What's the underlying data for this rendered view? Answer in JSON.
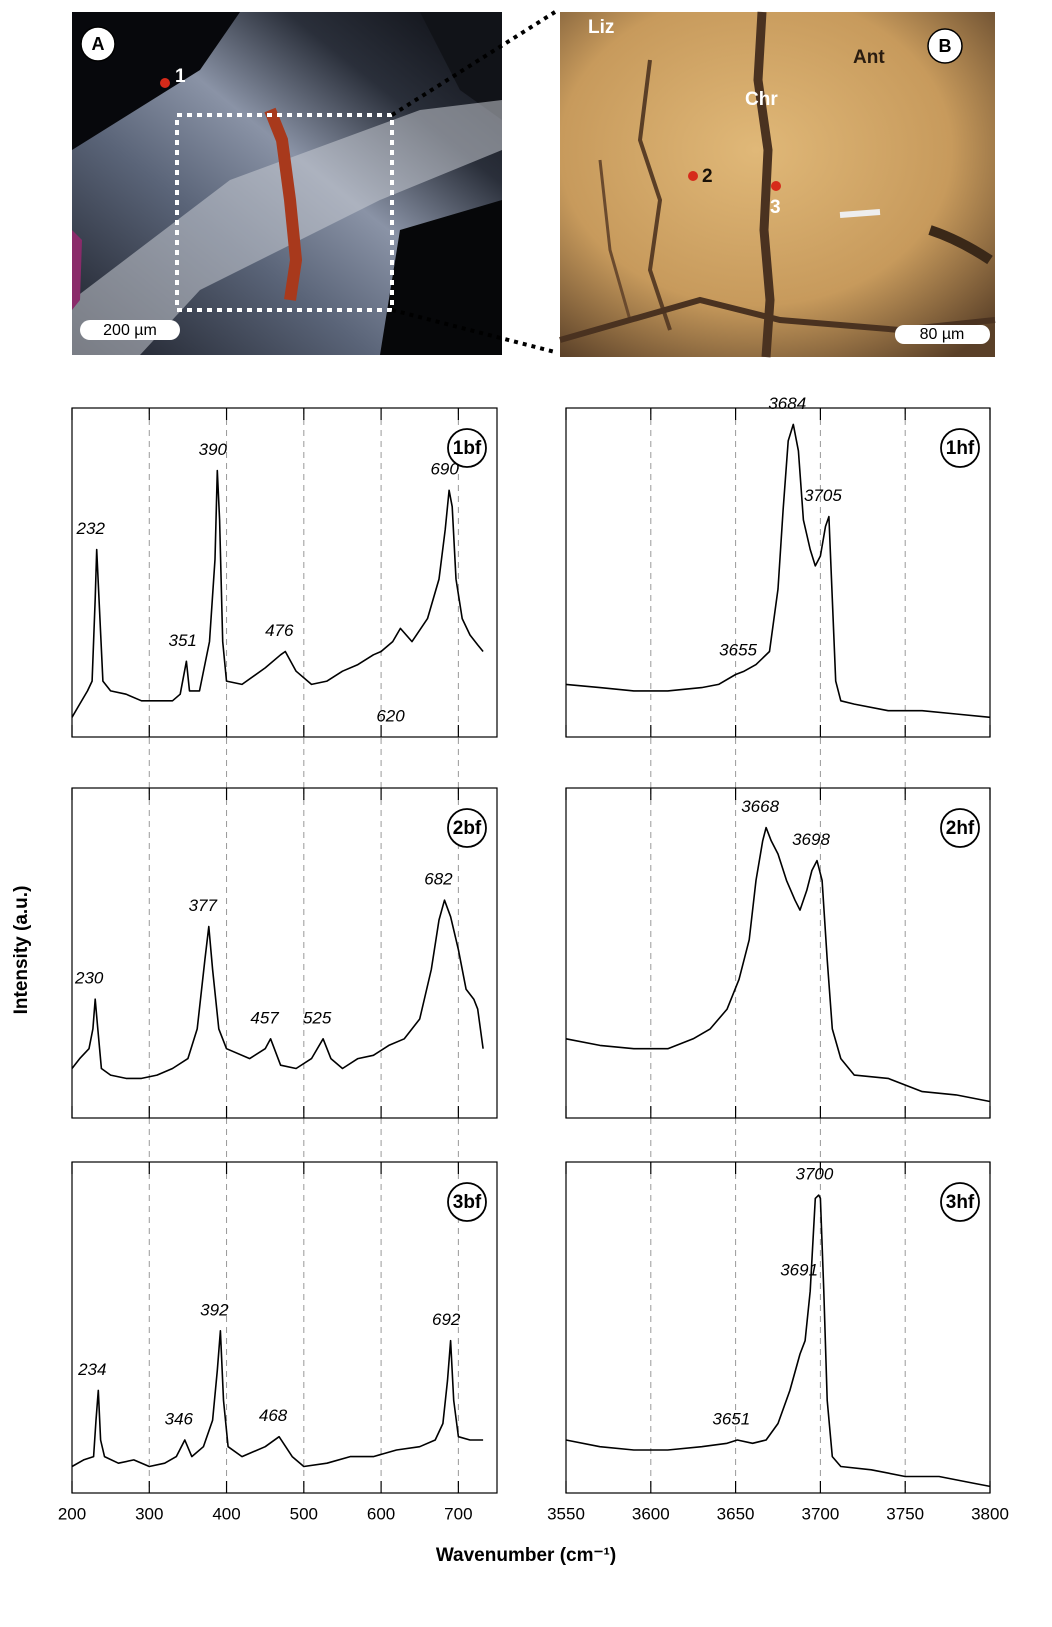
{
  "figure": {
    "xlabel": "Wavenumber (cm⁻¹)",
    "ylabel": "Intensity (a.u.)"
  },
  "images": [
    {
      "label": "A",
      "points": [
        "1"
      ],
      "scale": "200 µm"
    },
    {
      "label": "B",
      "points": [
        "2",
        "3"
      ],
      "regions": [
        "Liz",
        "Chr",
        "Ant"
      ],
      "scale": "80 µm"
    }
  ],
  "chart_data": [
    {
      "type": "line",
      "label": "1bf",
      "color": "#000",
      "grid": true,
      "xlim": [
        200,
        750
      ],
      "ylim": [
        0,
        100
      ],
      "xticks": [
        200,
        300,
        400,
        500,
        600,
        700
      ],
      "x": [
        200,
        210,
        220,
        226,
        230,
        232,
        235,
        240,
        250,
        270,
        290,
        310,
        330,
        340,
        348,
        352,
        365,
        378,
        385,
        388,
        391,
        395,
        400,
        420,
        450,
        470,
        476,
        490,
        510,
        530,
        550,
        570,
        590,
        600,
        615,
        625,
        640,
        660,
        675,
        683,
        688,
        692,
        697,
        705,
        715,
        725,
        732
      ],
      "values": [
        6,
        10,
        14,
        17,
        42,
        57,
        42,
        17,
        14,
        13,
        11,
        11,
        11,
        13,
        23,
        14,
        14,
        29,
        54,
        81,
        66,
        29,
        17,
        16,
        21,
        25,
        26,
        20,
        16,
        17,
        20,
        22,
        25,
        26,
        29,
        33,
        29,
        36,
        48,
        63,
        75,
        70,
        48,
        36,
        31,
        28,
        26
      ],
      "peaks": [
        232,
        351,
        390,
        476,
        620,
        690
      ]
    },
    {
      "type": "line",
      "label": "1hf",
      "color": "#000",
      "grid": true,
      "xlim": [
        3550,
        3800
      ],
      "ylim": [
        0,
        100
      ],
      "xticks": [
        3550,
        3600,
        3650,
        3700,
        3750,
        3800
      ],
      "x": [
        3550,
        3570,
        3590,
        3610,
        3630,
        3640,
        3650,
        3655,
        3662,
        3670,
        3675,
        3678,
        3681,
        3684,
        3687,
        3690,
        3694,
        3697,
        3700,
        3703,
        3705,
        3707,
        3709,
        3712,
        3720,
        3740,
        3760,
        3780,
        3800
      ],
      "values": [
        16,
        15,
        14,
        14,
        15,
        16,
        19,
        20,
        22,
        26,
        45,
        69,
        90,
        95,
        87,
        66,
        57,
        52,
        55,
        64,
        67,
        42,
        17,
        11,
        10,
        8,
        8,
        7,
        6
      ],
      "peaks": [
        3655,
        3684,
        3705
      ]
    },
    {
      "type": "line",
      "label": "2bf",
      "color": "#000",
      "grid": true,
      "xlim": [
        200,
        750
      ],
      "ylim": [
        0,
        100
      ],
      "xticks": [
        200,
        300,
        400,
        500,
        600,
        700
      ],
      "x": [
        200,
        210,
        222,
        227,
        230,
        233,
        238,
        250,
        270,
        290,
        310,
        330,
        350,
        362,
        372,
        377,
        382,
        390,
        400,
        430,
        450,
        457,
        470,
        490,
        510,
        525,
        535,
        550,
        570,
        590,
        610,
        630,
        650,
        665,
        675,
        682,
        690,
        700,
        710,
        720,
        725,
        732
      ],
      "values": [
        15,
        18,
        21,
        27,
        36,
        28,
        15,
        13,
        12,
        12,
        13,
        15,
        18,
        27,
        48,
        58,
        45,
        27,
        21,
        18,
        21,
        24,
        16,
        15,
        18,
        24,
        18,
        15,
        18,
        19,
        22,
        24,
        30,
        45,
        60,
        66,
        61,
        51,
        39,
        36,
        33,
        21
      ],
      "peaks": [
        230,
        377,
        457,
        525,
        682
      ]
    },
    {
      "type": "line",
      "label": "2hf",
      "color": "#000",
      "grid": true,
      "xlim": [
        3550,
        3800
      ],
      "ylim": [
        0,
        100
      ],
      "xticks": [
        3550,
        3600,
        3650,
        3700,
        3750,
        3800
      ],
      "x": [
        3550,
        3570,
        3590,
        3610,
        3625,
        3635,
        3645,
        3652,
        3658,
        3662,
        3666,
        3668,
        3671,
        3675,
        3680,
        3685,
        3688,
        3692,
        3695,
        3698,
        3701,
        3704,
        3707,
        3712,
        3720,
        3740,
        3760,
        3780,
        3800
      ],
      "values": [
        24,
        22,
        21,
        21,
        24,
        27,
        33,
        42,
        54,
        72,
        84,
        88,
        84,
        80,
        72,
        66,
        63,
        69,
        75,
        78,
        72,
        48,
        27,
        18,
        13,
        12,
        8,
        7,
        5
      ],
      "peaks": [
        3668,
        3698
      ]
    },
    {
      "type": "line",
      "label": "3bf",
      "color": "#000",
      "grid": true,
      "xlim": [
        200,
        750
      ],
      "ylim": [
        0,
        100
      ],
      "xticks": [
        200,
        300,
        400,
        500,
        600,
        700
      ],
      "x": [
        200,
        215,
        228,
        231,
        234,
        237,
        242,
        260,
        280,
        300,
        320,
        335,
        346,
        355,
        370,
        382,
        388,
        392,
        396,
        402,
        420,
        450,
        468,
        485,
        500,
        530,
        560,
        590,
        620,
        650,
        670,
        680,
        686,
        690,
        694,
        700,
        715,
        732
      ],
      "values": [
        8,
        10,
        11,
        22,
        31,
        16,
        11,
        9,
        10,
        8,
        9,
        11,
        16,
        11,
        14,
        22,
        37,
        49,
        28,
        14,
        11,
        14,
        17,
        11,
        8,
        9,
        11,
        11,
        13,
        14,
        16,
        21,
        34,
        46,
        28,
        17,
        16,
        16
      ],
      "peaks": [
        234,
        346,
        392,
        468,
        692
      ]
    },
    {
      "type": "line",
      "label": "3hf",
      "color": "#000",
      "grid": true,
      "xlim": [
        3550,
        3800
      ],
      "ylim": [
        0,
        100
      ],
      "xticks": [
        3550,
        3600,
        3650,
        3700,
        3750,
        3800
      ],
      "x": [
        3550,
        3570,
        3590,
        3610,
        3630,
        3645,
        3651,
        3660,
        3668,
        3675,
        3682,
        3688,
        3691,
        3694,
        3697,
        3699,
        3700,
        3702,
        3704,
        3707,
        3712,
        3730,
        3750,
        3770,
        3790,
        3800
      ],
      "values": [
        16,
        14,
        13,
        13,
        14,
        15,
        16,
        15,
        16,
        21,
        31,
        42,
        46,
        61,
        89,
        90,
        89,
        61,
        28,
        11,
        8,
        7,
        5,
        5,
        3,
        2
      ],
      "peaks": [
        3651,
        3691,
        3700
      ]
    }
  ]
}
